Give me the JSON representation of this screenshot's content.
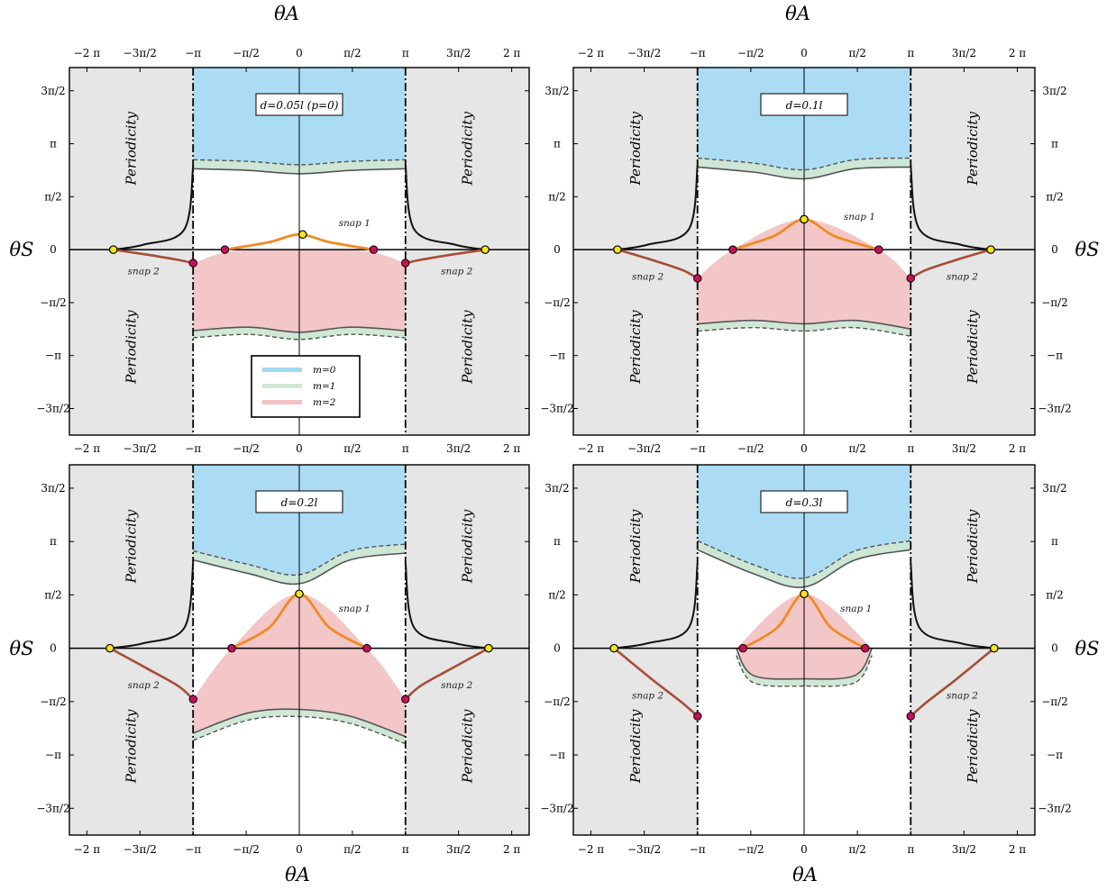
{
  "figure": {
    "top_axis_title": "θA",
    "bottom_axis_title": "θA",
    "y_axis_title": "θS",
    "periodicity_label": "Periodicity",
    "snap1_label": "snap 1",
    "snap2_label": "snap 2",
    "x_ticks": [
      "−2 π",
      "−3π/2",
      "−π",
      "−π/2",
      "0",
      "π/2",
      "π",
      "3π/2",
      "2 π"
    ],
    "y_ticks": [
      "3π/2",
      "π",
      "π/2",
      "0",
      "−π/2",
      "−π",
      "−3π/2"
    ]
  },
  "legend": [
    {
      "label": "m=0",
      "color": "#9fd9f2"
    },
    {
      "label": "m=1",
      "color": "#cfe7d5"
    },
    {
      "label": "m=2",
      "color": "#f4c2c4"
    }
  ],
  "colors": {
    "region_m0": "#abdcf4",
    "region_m1": "#cfe6d4",
    "region_m2": "#f3c6c8",
    "periodicity": "#e6e6e6",
    "snap1_curve": "#f08a24",
    "snap2_curve": "#a64d39",
    "equilibrium_point": "#f4e519",
    "snap_point": "#c8105a",
    "boundary": "#555555"
  },
  "chart_data": [
    {
      "type": "area",
      "title": "d=0.05l (p=0)",
      "xlabel": "θA",
      "ylabel": "θS",
      "xlim": [
        -6.8,
        6.8
      ],
      "ylim": [
        -5.5,
        5.4
      ],
      "x_tick_values": [
        -6.283,
        -4.712,
        -3.1416,
        -1.5708,
        0,
        1.5708,
        3.1416,
        4.712,
        6.283
      ],
      "y_tick_values": [
        4.712,
        3.1416,
        1.5708,
        0,
        -1.5708,
        -3.1416,
        -4.712
      ],
      "periodicity_bands": [
        [
          -6.8,
          -3.1416
        ],
        [
          3.1416,
          6.8
        ]
      ],
      "regions": [
        {
          "m": 0,
          "top": [
            [
              -3.14,
              5.4
            ],
            [
              3.14,
              5.4
            ]
          ],
          "bottom": [
            [
              -3.14,
              2.4
            ],
            [
              -1.5,
              2.35
            ],
            [
              0,
              2.25
            ],
            [
              1.5,
              2.35
            ],
            [
              3.14,
              2.4
            ]
          ]
        },
        {
          "m": 2,
          "top": [
            [
              -3.14,
              -0.4
            ],
            [
              -2.0,
              -0.05
            ],
            [
              0,
              0
            ],
            [
              2.0,
              -0.05
            ],
            [
              3.14,
              -0.4
            ]
          ],
          "bottom": [
            [
              -3.14,
              -2.4
            ],
            [
              -1.5,
              -2.3
            ],
            [
              0,
              -2.45
            ],
            [
              1.5,
              -2.3
            ],
            [
              3.14,
              -2.4
            ]
          ]
        }
      ],
      "equilibria": [
        [
          -5.5,
          0
        ],
        [
          0.1,
          0.45
        ],
        [
          5.5,
          0
        ]
      ],
      "snap_points": [
        [
          -3.14,
          -0.4
        ],
        [
          -2.2,
          0
        ],
        [
          2.2,
          0
        ],
        [
          3.14,
          -0.4
        ]
      ],
      "snap1_curve": [
        [
          -2.2,
          0
        ],
        [
          -0.9,
          0.22
        ],
        [
          0,
          0.45
        ],
        [
          0.9,
          0.22
        ],
        [
          2.2,
          0
        ]
      ],
      "snap2_curves": [
        [
          [
            -5.5,
            0
          ],
          [
            -4.5,
            -0.15
          ],
          [
            -3.6,
            -0.3
          ],
          [
            -3.14,
            -0.4
          ]
        ],
        [
          [
            5.5,
            0
          ],
          [
            4.5,
            -0.15
          ],
          [
            3.6,
            -0.3
          ],
          [
            3.14,
            -0.4
          ]
        ]
      ],
      "show_legend": true
    },
    {
      "type": "area",
      "title": "d=0.1l",
      "xlabel": "θA",
      "ylabel": "θS",
      "xlim": [
        -6.8,
        6.8
      ],
      "ylim": [
        -5.5,
        5.4
      ],
      "x_tick_values": [
        -6.283,
        -4.712,
        -3.1416,
        -1.5708,
        0,
        1.5708,
        3.1416,
        4.712,
        6.283
      ],
      "y_tick_values": [
        4.712,
        3.1416,
        1.5708,
        0,
        -1.5708,
        -3.1416,
        -4.712
      ],
      "periodicity_bands": [
        [
          -6.8,
          -3.1416
        ],
        [
          3.1416,
          6.8
        ]
      ],
      "regions": [
        {
          "m": 0,
          "top": [
            [
              -3.14,
              5.4
            ],
            [
              3.14,
              5.4
            ]
          ],
          "bottom": [
            [
              -3.14,
              2.45
            ],
            [
              -1.5,
              2.3
            ],
            [
              0,
              2.1
            ],
            [
              1.5,
              2.4
            ],
            [
              3.14,
              2.45
            ]
          ]
        },
        {
          "m": 2,
          "top": [
            [
              -3.14,
              -0.85
            ],
            [
              -2.1,
              0
            ],
            [
              0,
              0.9
            ],
            [
              2.2,
              0
            ],
            [
              3.14,
              -0.85
            ]
          ],
          "bottom": [
            [
              -3.14,
              -2.2
            ],
            [
              -1.5,
              -2.1
            ],
            [
              0,
              -2.2
            ],
            [
              1.5,
              -2.1
            ],
            [
              3.14,
              -2.35
            ]
          ]
        }
      ],
      "equilibria": [
        [
          -5.5,
          0
        ],
        [
          0,
          0.9
        ],
        [
          5.5,
          0
        ]
      ],
      "snap_points": [
        [
          -3.14,
          -0.85
        ],
        [
          -2.1,
          0
        ],
        [
          2.2,
          0
        ],
        [
          3.14,
          -0.85
        ]
      ],
      "snap1_curve": [
        [
          -2.1,
          0
        ],
        [
          -0.9,
          0.4
        ],
        [
          0,
          0.9
        ],
        [
          0.9,
          0.4
        ],
        [
          2.2,
          0
        ]
      ],
      "snap2_curves": [
        [
          [
            -5.5,
            0
          ],
          [
            -4.5,
            -0.3
          ],
          [
            -3.6,
            -0.6
          ],
          [
            -3.14,
            -0.85
          ]
        ],
        [
          [
            5.5,
            0
          ],
          [
            4.5,
            -0.3
          ],
          [
            3.6,
            -0.6
          ],
          [
            3.14,
            -0.85
          ]
        ]
      ],
      "show_legend": false
    },
    {
      "type": "area",
      "title": "d=0.2l",
      "xlabel": "θA",
      "ylabel": "θS",
      "xlim": [
        -6.8,
        6.8
      ],
      "ylim": [
        -5.5,
        5.4
      ],
      "x_tick_values": [
        -6.283,
        -4.712,
        -3.1416,
        -1.5708,
        0,
        1.5708,
        3.1416,
        4.712,
        6.283
      ],
      "y_tick_values": [
        4.712,
        3.1416,
        1.5708,
        0,
        -1.5708,
        -3.1416,
        -4.712
      ],
      "periodicity_bands": [
        [
          -6.8,
          -3.1416
        ],
        [
          3.1416,
          6.8
        ]
      ],
      "regions": [
        {
          "m": 0,
          "top": [
            [
              -3.14,
              5.4
            ],
            [
              3.14,
              5.4
            ]
          ],
          "bottom": [
            [
              -3.14,
              2.6
            ],
            [
              -1.5,
              2.2
            ],
            [
              0,
              1.9
            ],
            [
              1.5,
              2.6
            ],
            [
              3.14,
              2.8
            ]
          ]
        },
        {
          "m": 2,
          "top": [
            [
              -3.14,
              -1.5
            ],
            [
              -2.0,
              0
            ],
            [
              0,
              1.6
            ],
            [
              2.0,
              0
            ],
            [
              3.14,
              -1.5
            ]
          ],
          "bottom": [
            [
              -3.14,
              -2.5
            ],
            [
              -1.5,
              -1.9
            ],
            [
              0,
              -1.8
            ],
            [
              1.5,
              -2.0
            ],
            [
              3.14,
              -2.6
            ]
          ]
        }
      ],
      "equilibria": [
        [
          -5.6,
          0
        ],
        [
          0,
          1.6
        ],
        [
          5.6,
          0
        ]
      ],
      "snap_points": [
        [
          -3.14,
          -1.5
        ],
        [
          -2.0,
          0
        ],
        [
          2.0,
          0
        ],
        [
          3.14,
          -1.5
        ]
      ],
      "snap1_curve": [
        [
          -2.0,
          0
        ],
        [
          -0.9,
          0.6
        ],
        [
          0,
          1.6
        ],
        [
          0.9,
          0.6
        ],
        [
          2.0,
          0
        ]
      ],
      "snap2_curves": [
        [
          [
            -5.6,
            0
          ],
          [
            -4.5,
            -0.6
          ],
          [
            -3.6,
            -1.1
          ],
          [
            -3.14,
            -1.5
          ]
        ],
        [
          [
            5.6,
            0
          ],
          [
            4.5,
            -0.6
          ],
          [
            3.6,
            -1.1
          ],
          [
            3.14,
            -1.5
          ]
        ]
      ],
      "show_legend": false
    },
    {
      "type": "area",
      "title": "d=0.3l",
      "xlabel": "θA",
      "ylabel": "θS",
      "xlim": [
        -6.8,
        6.8
      ],
      "ylim": [
        -5.5,
        5.4
      ],
      "x_tick_values": [
        -6.283,
        -4.712,
        -3.1416,
        -1.5708,
        0,
        1.5708,
        3.1416,
        4.712,
        6.283
      ],
      "y_tick_values": [
        4.712,
        3.1416,
        1.5708,
        0,
        -1.5708,
        -3.1416,
        -4.712
      ],
      "periodicity_bands": [
        [
          -6.8,
          -3.1416
        ],
        [
          3.1416,
          6.8
        ]
      ],
      "regions": [
        {
          "m": 0,
          "top": [
            [
              -3.14,
              5.4
            ],
            [
              3.14,
              5.4
            ]
          ],
          "bottom": [
            [
              -3.14,
              2.9
            ],
            [
              -1.5,
              2.2
            ],
            [
              0,
              1.8
            ],
            [
              1.5,
              2.6
            ],
            [
              3.14,
              2.9
            ]
          ]
        },
        {
          "m": 2,
          "top": [
            [
              -2.0,
              0
            ],
            [
              0,
              1.6
            ],
            [
              2.0,
              0
            ]
          ],
          "bottom": [
            [
              -2.0,
              0
            ],
            [
              -1.5,
              -0.8
            ],
            [
              0,
              -0.9
            ],
            [
              1.5,
              -0.8
            ],
            [
              2.0,
              0
            ]
          ]
        }
      ],
      "equilibria": [
        [
          -5.6,
          0
        ],
        [
          0,
          1.6
        ],
        [
          5.6,
          0
        ]
      ],
      "snap_points": [
        [
          -3.14,
          -2.0
        ],
        [
          -1.8,
          0
        ],
        [
          1.8,
          0
        ],
        [
          3.14,
          -2.0
        ]
      ],
      "snap1_curve": [
        [
          -1.8,
          0
        ],
        [
          -0.8,
          0.6
        ],
        [
          0,
          1.6
        ],
        [
          0.8,
          0.6
        ],
        [
          1.8,
          0
        ]
      ],
      "snap2_curves": [
        [
          [
            -5.6,
            0
          ],
          [
            -4.5,
            -0.9
          ],
          [
            -3.6,
            -1.6
          ],
          [
            -3.14,
            -2.0
          ]
        ],
        [
          [
            5.6,
            0
          ],
          [
            4.5,
            -0.9
          ],
          [
            3.6,
            -1.6
          ],
          [
            3.14,
            -2.0
          ]
        ]
      ],
      "show_legend": false
    }
  ]
}
